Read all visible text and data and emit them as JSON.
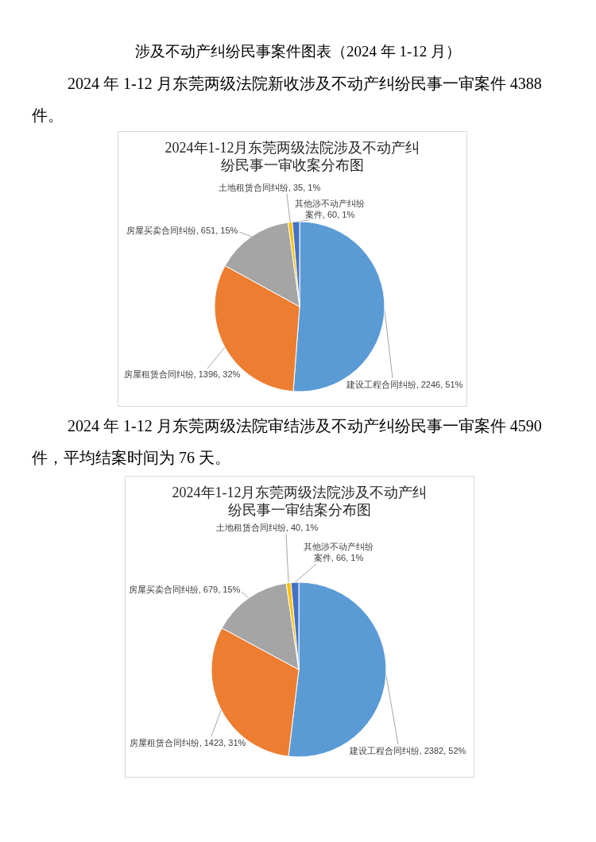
{
  "chart_data": [
    {
      "type": "pie",
      "title": "2024年1-12月东莞两级法院涉及不动产纠纷民事一审收案分布图",
      "annotations": [
        "涉及不动产纠纷民事案件图表（2024 年 1-12 月）",
        "2024 年 1-12 月东莞两级法院新收涉及不动产纠纷民事一审案件 4388 件。"
      ],
      "categories": [
        "建设工程合同纠纷",
        "房屋租赁合同纠纷",
        "房屋买卖合同纠纷",
        "土地租赁合同纠纷",
        "其他涉不动产纠纷案件"
      ],
      "values": [
        2246,
        1396,
        651,
        35,
        60
      ],
      "value_labels": [
        "2246, 51%",
        "1396, 32%",
        "651, 15%",
        "35, 1%",
        "60, 1%"
      ],
      "colors": [
        "#5b9bd5",
        "#ed7d31",
        "#a5a5a5",
        "#ffc000",
        "#4472c4"
      ]
    },
    {
      "type": "pie",
      "title": "2024年1-12月东莞两级法院涉及不动产纠纷民事一审结案分布图",
      "annotations": [
        "2024 年 1-12 月东莞两级法院审结涉及不动产纠纷民事一审案件 4590 件，平均结案时间为 76 天。"
      ],
      "categories": [
        "建设工程合同纠纷",
        "房屋租赁合同纠纷",
        "房屋买卖合同纠纷",
        "土地租赁合同纠纷",
        "其他涉不动产纠纷案件"
      ],
      "values": [
        2382,
        1423,
        679,
        40,
        66
      ],
      "value_labels": [
        "2382, 52%",
        "1423, 31%",
        "679, 15%",
        "40, 1%",
        "66, 1%"
      ],
      "colors": [
        "#5b9bd5",
        "#ed7d31",
        "#a5a5a5",
        "#ffc000",
        "#4472c4"
      ]
    }
  ]
}
